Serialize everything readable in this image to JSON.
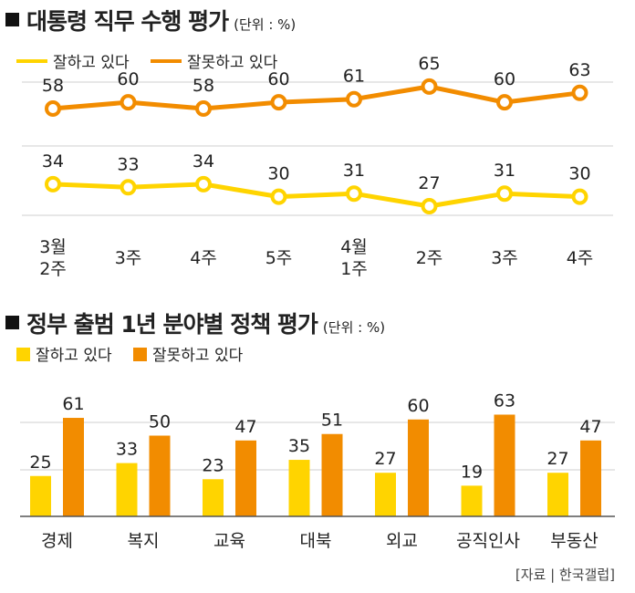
{
  "colors": {
    "approve": "#FFD400",
    "disapprove": "#F28C00",
    "grid": "#cfcfcf"
  },
  "line_panel": {
    "title": "대통령 직무 수행 평가",
    "unit": "(단위 : %)",
    "legend": [
      "잘하고 있다",
      "잘못하고 있다"
    ]
  },
  "bar_panel": {
    "title": "정부 출범 1년 분야별 정책 평가",
    "unit": "(단위 : %)",
    "legend": [
      "잘하고 있다",
      "잘못하고 있다"
    ]
  },
  "source": "[자료 | 한국갤럽]",
  "chart_data": [
    {
      "type": "line",
      "title": "대통령 직무 수행 평가",
      "unit": "(단위 : %)",
      "categories": [
        [
          "3월",
          "2주"
        ],
        [
          "3주"
        ],
        [
          "4주"
        ],
        [
          "5주"
        ],
        [
          "4월",
          "1주"
        ],
        [
          "2주"
        ],
        [
          "3주"
        ],
        [
          "4주"
        ]
      ],
      "series": [
        {
          "name": "잘하고 있다",
          "values": [
            34,
            33,
            34,
            30,
            31,
            27,
            31,
            30
          ]
        },
        {
          "name": "잘못하고 있다",
          "values": [
            58,
            60,
            58,
            60,
            61,
            65,
            60,
            63
          ]
        }
      ],
      "grid": true,
      "legend_position": "top-left"
    },
    {
      "type": "bar",
      "title": "정부 출범 1년 분야별 정책 평가",
      "unit": "(단위 : %)",
      "categories": [
        "경제",
        "복지",
        "교육",
        "대북",
        "외교",
        "공직인사",
        "부동산"
      ],
      "series": [
        {
          "name": "잘하고 있다",
          "values": [
            25,
            33,
            23,
            35,
            27,
            19,
            27
          ]
        },
        {
          "name": "잘못하고 있다",
          "values": [
            61,
            50,
            47,
            51,
            60,
            63,
            47
          ]
        }
      ],
      "grid": true,
      "legend_position": "top-left"
    }
  ]
}
